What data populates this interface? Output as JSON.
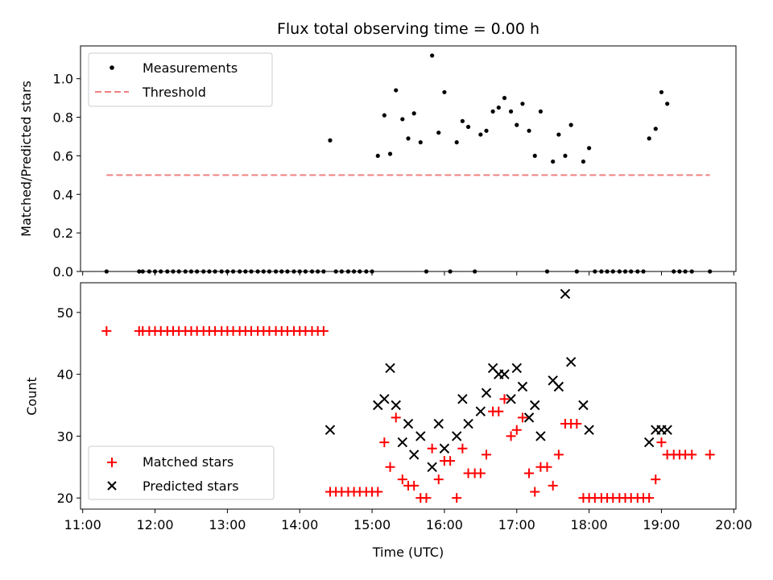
{
  "chart_data": [
    {
      "type": "scatter",
      "title": "Flux total observing time = 0.00 h",
      "xlabel": "",
      "ylabel": "Matched/Predicted stars",
      "ylim": [
        0,
        1.17
      ],
      "xlim": [
        10.97,
        20.03
      ],
      "yticks": [
        0,
        0.2,
        0.4,
        0.6,
        0.8,
        1.0
      ],
      "ytick_labels": [
        "0.0",
        "0.2",
        "0.4",
        "0.6",
        "0.8",
        "1.0"
      ],
      "legend_position": "upper-left",
      "colors": {
        "measurements": "#000000",
        "threshold": "#f08080"
      },
      "legend": {
        "measurements": "Measurements",
        "threshold": "Threshold"
      },
      "threshold": {
        "value": 0.5,
        "x_range": [
          11.33,
          19.67
        ]
      },
      "series": [
        {
          "name": "Measurements",
          "x": [
            11.33,
            11.78,
            11.83,
            11.92,
            12.0,
            12.08,
            12.17,
            12.25,
            12.33,
            12.42,
            12.5,
            12.58,
            12.67,
            12.75,
            12.83,
            12.92,
            13.0,
            13.08,
            13.17,
            13.25,
            13.33,
            13.42,
            13.5,
            13.58,
            13.67,
            13.75,
            13.83,
            13.92,
            14.0,
            14.08,
            14.17,
            14.25,
            14.33,
            14.42,
            14.5,
            14.58,
            14.67,
            14.75,
            14.83,
            14.92,
            15.0,
            15.08,
            15.17,
            15.25,
            15.33,
            15.42,
            15.5,
            15.58,
            15.67,
            15.75,
            15.83,
            15.92,
            16.0,
            16.08,
            16.17,
            16.25,
            16.33,
            16.42,
            16.5,
            16.58,
            16.67,
            16.75,
            16.83,
            16.92,
            17.0,
            17.08,
            17.17,
            17.25,
            17.33,
            17.42,
            17.5,
            17.58,
            17.67,
            17.75,
            17.83,
            17.92,
            18.0,
            18.08,
            18.17,
            18.25,
            18.33,
            18.42,
            18.5,
            18.58,
            18.67,
            18.75,
            18.83,
            18.92,
            19.0,
            19.08,
            19.17,
            19.25,
            19.33,
            19.42,
            19.67
          ],
          "y": [
            0,
            0,
            0,
            0,
            0,
            0,
            0,
            0,
            0,
            0,
            0,
            0,
            0,
            0,
            0,
            0,
            0,
            0,
            0,
            0,
            0,
            0,
            0,
            0,
            0,
            0,
            0,
            0,
            0,
            0,
            0,
            0,
            0,
            0.68,
            0,
            0,
            0,
            0,
            0,
            0,
            0,
            0.6,
            0.81,
            0.61,
            0.94,
            0.79,
            0.69,
            0.82,
            0.67,
            0,
            1.12,
            0.72,
            0.93,
            0,
            0.67,
            0.78,
            0.75,
            0,
            0.71,
            0.73,
            0.83,
            0.85,
            0.9,
            0.83,
            0.76,
            0.87,
            0.73,
            0.6,
            0.83,
            0,
            0.57,
            0.71,
            0.6,
            0.76,
            0,
            0.57,
            0.64,
            0,
            0,
            0,
            0,
            0,
            0,
            0,
            0,
            0,
            0.69,
            0.74,
            0.93,
            0.87,
            0,
            0,
            0,
            0,
            0
          ]
        }
      ]
    },
    {
      "type": "scatter",
      "title": "",
      "xlabel": "Time (UTC)",
      "ylabel": "Count",
      "ylim": [
        18.2,
        54.8
      ],
      "xlim": [
        10.97,
        20.03
      ],
      "yticks": [
        20,
        30,
        40,
        50
      ],
      "ytick_labels": [
        "20",
        "30",
        "40",
        "50"
      ],
      "xticks": [
        11,
        12,
        13,
        14,
        15,
        16,
        17,
        18,
        19,
        20
      ],
      "xtick_labels": [
        "11:00",
        "12:00",
        "13:00",
        "14:00",
        "15:00",
        "16:00",
        "17:00",
        "18:00",
        "19:00",
        "20:00"
      ],
      "legend_position": "lower-left",
      "colors": {
        "matched": "#ff0000",
        "predicted": "#000000"
      },
      "legend": {
        "matched": "Matched stars",
        "predicted": "Predicted stars"
      },
      "series": [
        {
          "name": "Matched stars",
          "marker": "plus",
          "x": [
            11.33,
            11.78,
            11.83,
            11.92,
            12.0,
            12.08,
            12.17,
            12.25,
            12.33,
            12.42,
            12.5,
            12.58,
            12.67,
            12.75,
            12.83,
            12.92,
            13.0,
            13.08,
            13.17,
            13.25,
            13.33,
            13.42,
            13.5,
            13.58,
            13.67,
            13.75,
            13.83,
            13.92,
            14.0,
            14.08,
            14.17,
            14.25,
            14.33,
            14.42,
            14.5,
            14.58,
            14.67,
            14.75,
            14.83,
            14.92,
            15.0,
            15.08,
            15.17,
            15.25,
            15.33,
            15.42,
            15.5,
            15.58,
            15.67,
            15.75,
            15.83,
            15.92,
            16.0,
            16.08,
            16.17,
            16.25,
            16.33,
            16.42,
            16.5,
            16.58,
            16.67,
            16.75,
            16.83,
            16.92,
            17.0,
            17.08,
            17.17,
            17.25,
            17.33,
            17.42,
            17.5,
            17.58,
            17.67,
            17.75,
            17.83,
            17.92,
            18.0,
            18.08,
            18.17,
            18.25,
            18.33,
            18.42,
            18.5,
            18.58,
            18.67,
            18.75,
            18.83,
            18.92,
            19.0,
            19.08,
            19.17,
            19.25,
            19.33,
            19.42,
            19.67
          ],
          "y": [
            47,
            47,
            47,
            47,
            47,
            47,
            47,
            47,
            47,
            47,
            47,
            47,
            47,
            47,
            47,
            47,
            47,
            47,
            47,
            47,
            47,
            47,
            47,
            47,
            47,
            47,
            47,
            47,
            47,
            47,
            47,
            47,
            47,
            21,
            21,
            21,
            21,
            21,
            21,
            21,
            21,
            21,
            29,
            25,
            33,
            23,
            22,
            22,
            20,
            20,
            28,
            23,
            26,
            26,
            20,
            28,
            24,
            24,
            24,
            27,
            34,
            34,
            36,
            30,
            31,
            33,
            24,
            21,
            25,
            25,
            22,
            27,
            32,
            32,
            32,
            20,
            20,
            20,
            20,
            20,
            20,
            20,
            20,
            20,
            20,
            20,
            20,
            23,
            29,
            27,
            27,
            27,
            27,
            27,
            27
          ]
        },
        {
          "name": "Predicted stars",
          "marker": "x",
          "x": [
            14.42,
            15.08,
            15.17,
            15.25,
            15.33,
            15.42,
            15.5,
            15.58,
            15.67,
            15.83,
            15.92,
            16.0,
            16.17,
            16.25,
            16.33,
            16.5,
            16.58,
            16.67,
            16.75,
            16.83,
            16.92,
            17.0,
            17.08,
            17.17,
            17.25,
            17.33,
            17.5,
            17.58,
            17.67,
            17.75,
            17.92,
            18.0,
            18.83,
            18.92,
            19.0,
            19.08
          ],
          "y": [
            31,
            35,
            36,
            41,
            35,
            29,
            32,
            27,
            30,
            25,
            32,
            28,
            30,
            36,
            32,
            34,
            37,
            41,
            40,
            40,
            36,
            41,
            38,
            33,
            35,
            30,
            39,
            38,
            53,
            42,
            35,
            31,
            29,
            31,
            31,
            31
          ]
        }
      ]
    }
  ]
}
